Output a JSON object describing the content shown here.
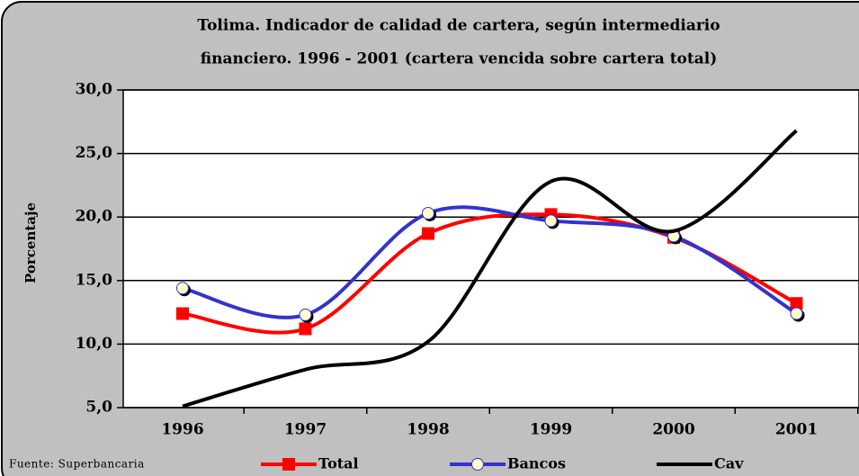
{
  "chart_data": {
    "type": "line",
    "title": [
      "Tolima.  Indicador de calidad de cartera, según intermediario",
      "financiero. 1996 - 2001 (cartera vencida sobre cartera total)"
    ],
    "y_label": "Porcentaje",
    "source": "Fuente: Superbancaria",
    "categories": [
      "1996",
      "1997",
      "1998",
      "1999",
      "2000",
      "2001"
    ],
    "series": [
      {
        "name": "Total",
        "color": "#ff0000",
        "marker": "square",
        "values": [
          12.4,
          11.2,
          18.7,
          20.2,
          18.4,
          13.2
        ]
      },
      {
        "name": "Bancos",
        "color": "#3333cc",
        "marker": "circle",
        "values": [
          14.4,
          12.3,
          20.3,
          19.7,
          18.5,
          12.4
        ]
      },
      {
        "name": "Cav",
        "color": "#000000",
        "marker": "none",
        "values": [
          5.1,
          8.0,
          10.2,
          22.8,
          18.9,
          26.8
        ]
      }
    ],
    "ylim": [
      5,
      30
    ],
    "yticks": [
      {
        "value": 5,
        "label": "5,0"
      },
      {
        "value": 10,
        "label": "10,0"
      },
      {
        "value": 15,
        "label": "15,0"
      },
      {
        "value": 20,
        "label": "20,0"
      },
      {
        "value": 25,
        "label": "25,0"
      },
      {
        "value": 30,
        "label": "30,0"
      }
    ],
    "grid": true,
    "legend": "bottom"
  }
}
